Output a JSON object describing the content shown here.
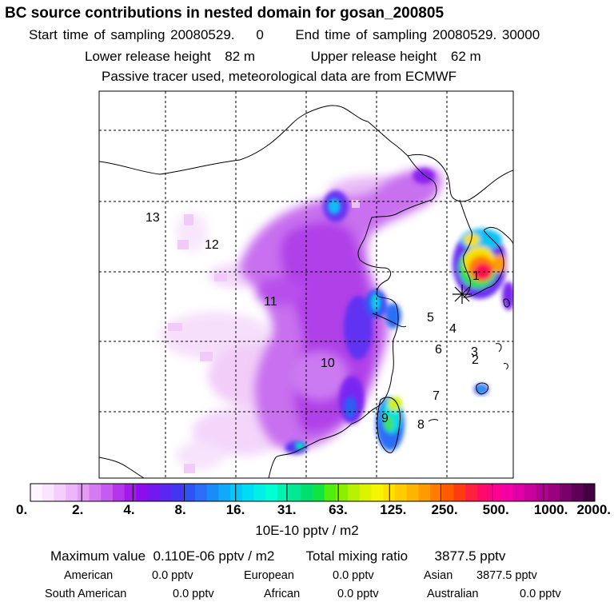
{
  "header": {
    "title": "BC  source contributions in nested domain for gosan_200805",
    "start_label": "Start time of sampling",
    "start_value": "20080529.    0",
    "end_label": "End time of sampling",
    "end_value": "20080529. 30000",
    "lower_label": "Lower release height",
    "lower_value": "82 m",
    "upper_label": "Upper release height",
    "upper_value": "62 m",
    "note": "Passive tracer used, meteorological data are from ECMWF"
  },
  "map": {
    "region_labels": [
      "1",
      "2",
      "3",
      "4",
      "5",
      "6",
      "7",
      "8",
      "9",
      "10",
      "11",
      "12",
      "13"
    ],
    "gridlines": "dashed",
    "receptor_marker": "star-icon"
  },
  "colorbar": {
    "tick_labels": [
      "0.",
      "2.",
      "4.",
      "8.",
      "16.",
      "31.",
      "63.",
      "125.",
      "250.",
      "500.",
      "1000.",
      "2000."
    ],
    "colors": [
      "#fff4ff",
      "#fae4ff",
      "#f4cefc",
      "#eeb6fa",
      "#e59af7",
      "#d47af2",
      "#c75af0",
      "#b435ea",
      "#a41ae8",
      "#8c0eef",
      "#7418f2",
      "#5a26f2",
      "#4236f2",
      "#2f52f5",
      "#2a6ef6",
      "#1a8cf6",
      "#10aaf8",
      "#06c6f8",
      "#00dcf4",
      "#00f0e8",
      "#00ffd4",
      "#00f4b0",
      "#00e890",
      "#00de70",
      "#10e440",
      "#50ee10",
      "#8af000",
      "#b8f200",
      "#dcf400",
      "#f6f400",
      "#ffe000",
      "#ffcc00",
      "#ffb400",
      "#ff9a00",
      "#ff7c00",
      "#ff5a00",
      "#ff3c10",
      "#ff2040",
      "#ff0a6a",
      "#ff0090",
      "#f400a4",
      "#e000a8",
      "#c8009e",
      "#b00090",
      "#98007e",
      "#7a006a",
      "#5e0056",
      "#420040"
    ],
    "unit": "10E-10 pptv / m2"
  },
  "summary": {
    "max_label": "Maximum value",
    "max_value": "0.110E-06 pptv / m2",
    "total_label": "Total mixing ratio",
    "total_value": "3877.5 pptv",
    "regions": [
      {
        "name": "American",
        "value": "0.0 pptv"
      },
      {
        "name": "European",
        "value": "0.0 pptv"
      },
      {
        "name": "Asian",
        "value": "3877.5 pptv"
      },
      {
        "name": "South American",
        "value": "0.0 pptv"
      },
      {
        "name": "African",
        "value": "0.0 pptv"
      },
      {
        "name": "Australian",
        "value": "0.0 pptv"
      }
    ]
  }
}
